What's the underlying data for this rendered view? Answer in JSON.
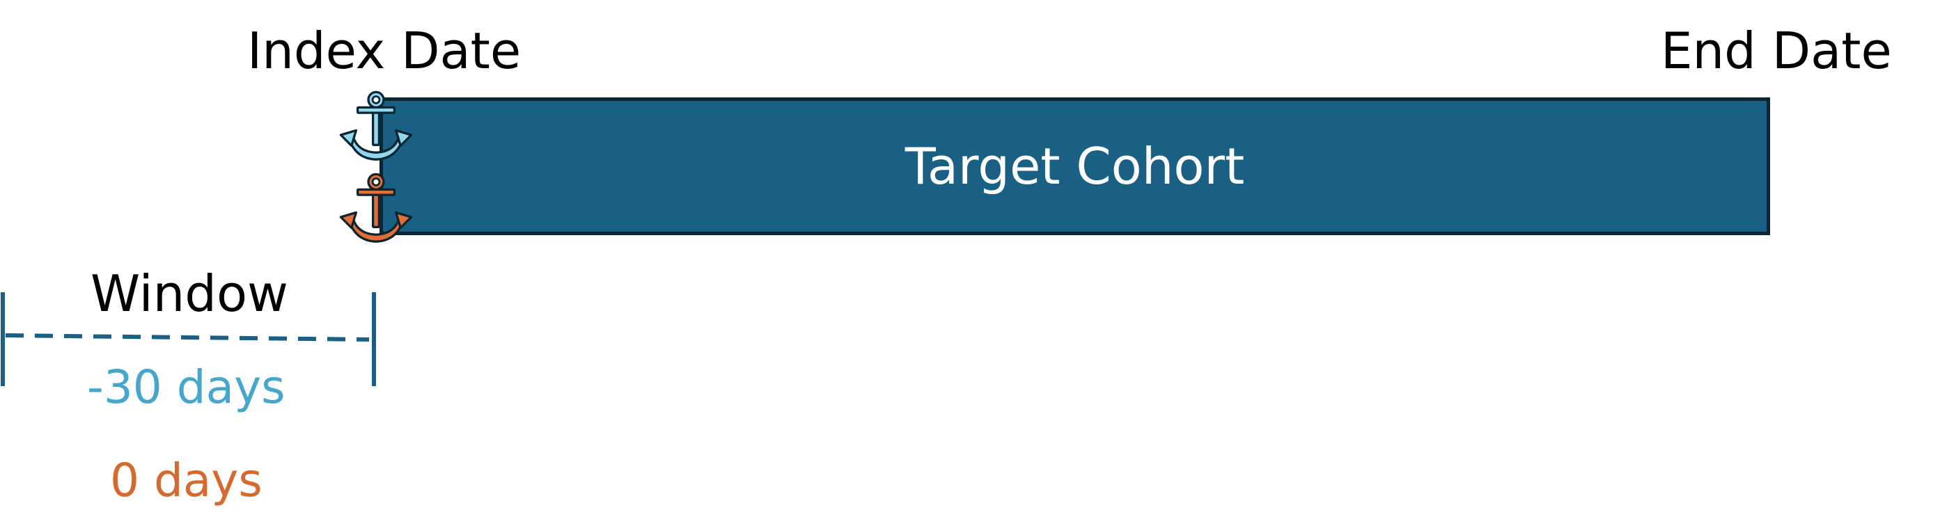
{
  "timeline": {
    "index_date_label": "Index Date",
    "end_date_label": "End Date"
  },
  "cohort": {
    "label": "Target Cohort",
    "fill_color": "#1a6085",
    "border_color": "#0d2433"
  },
  "anchors": {
    "start": {
      "icon": "anchor-icon",
      "color": "#8fd8ee"
    },
    "end": {
      "icon": "anchor-icon",
      "color": "#e56e36"
    }
  },
  "window": {
    "title": "Window",
    "line_color": "#1a6085",
    "start_offset": {
      "label": "-30 days",
      "color": "#46a6cc"
    },
    "end_offset": {
      "label": "0 days",
      "color": "#d46a30"
    }
  }
}
